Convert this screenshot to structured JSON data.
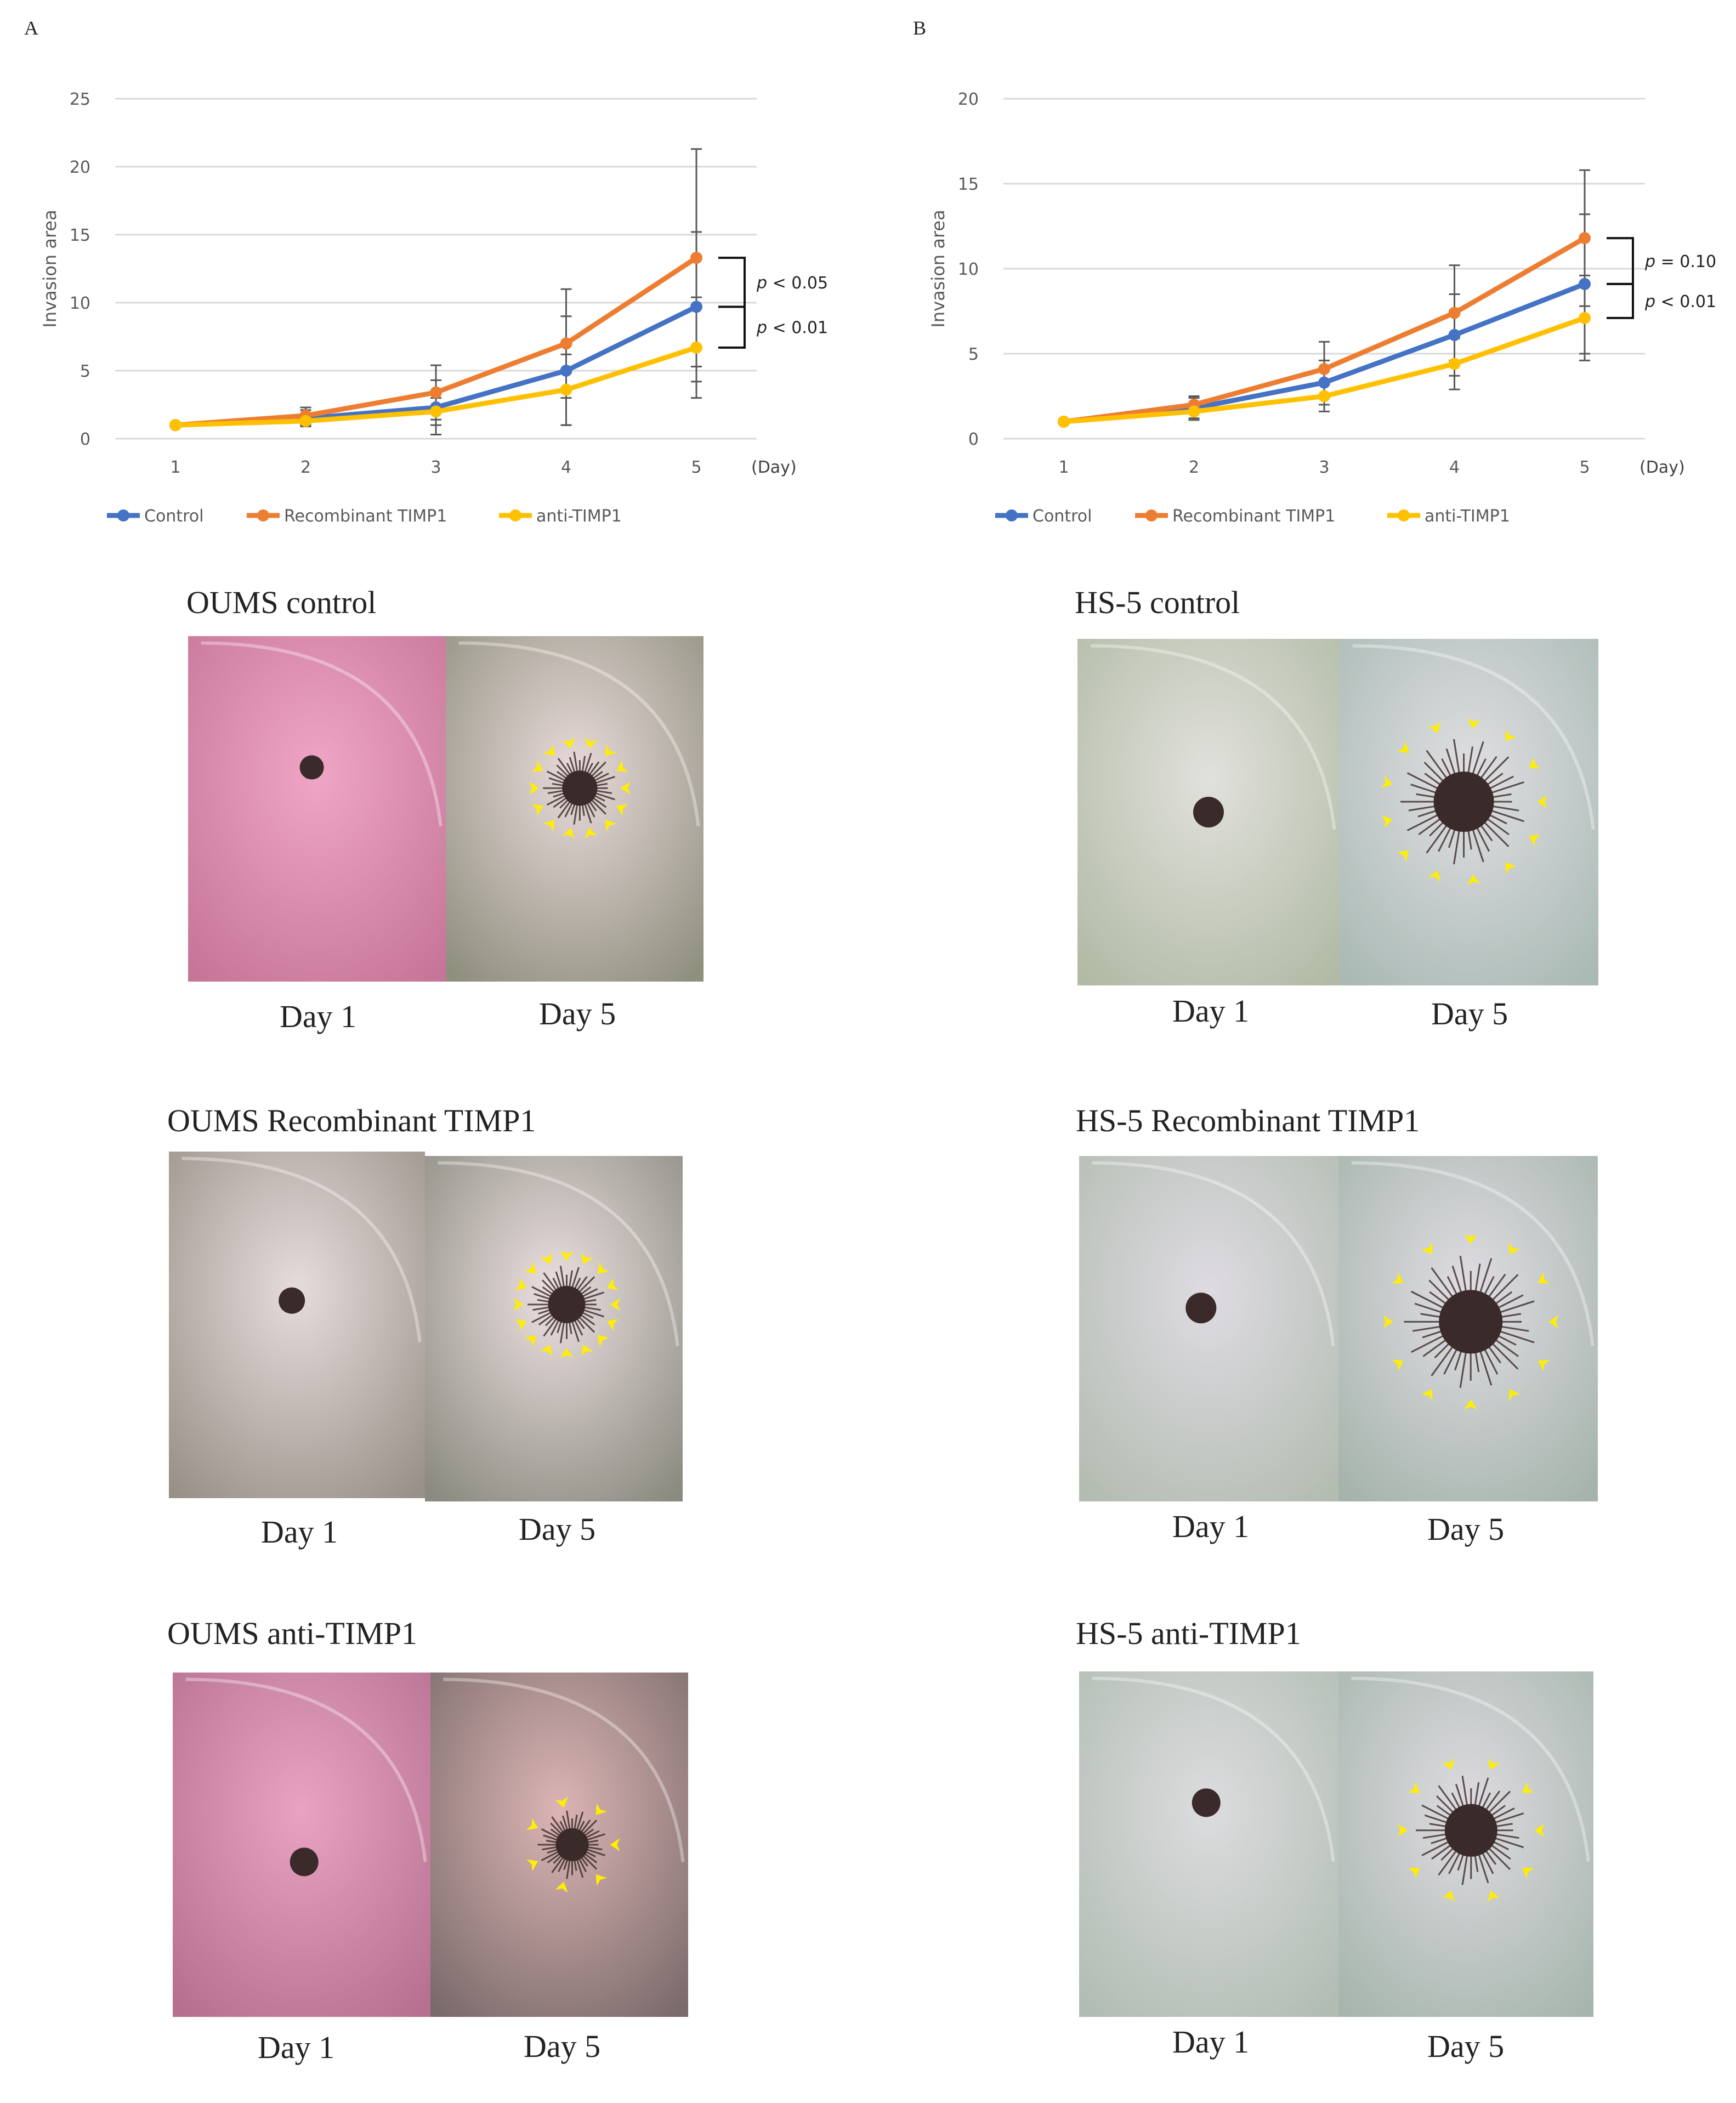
{
  "panels": {
    "a": {
      "letter": "A"
    },
    "b": {
      "letter": "B"
    }
  },
  "chart_data": [
    {
      "panel": "A",
      "type": "line",
      "ylabel": "Invasion area",
      "xlabel": "(Day)",
      "ylim": [
        0,
        25
      ],
      "yticks": [
        0,
        5,
        10,
        15,
        20,
        25
      ],
      "x": [
        1,
        2,
        3,
        4,
        5
      ],
      "series": [
        {
          "name": "Control",
          "color": "#4472C4",
          "values": [
            1.0,
            1.5,
            2.3,
            5.0,
            9.7
          ],
          "errors": [
            0.15,
            0.6,
            2.0,
            4.0,
            5.5
          ]
        },
        {
          "name": "Recombinant TIMP1",
          "color": "#ED7D31",
          "values": [
            1.0,
            1.7,
            3.4,
            7.0,
            13.3
          ],
          "errors": [
            0.15,
            0.6,
            2.0,
            4.0,
            8.0
          ]
        },
        {
          "name": "anti-TIMP1",
          "color": "#FFC000",
          "values": [
            1.0,
            1.3,
            2.0,
            3.6,
            6.7
          ],
          "errors": [
            0.15,
            0.3,
            1.0,
            2.6,
            3.7
          ]
        }
      ],
      "annotations": [
        {
          "prefix": "p",
          "text": " < 0.05"
        },
        {
          "prefix": "p",
          "text": " < 0.01"
        }
      ]
    },
    {
      "panel": "B",
      "type": "line",
      "ylabel": "Invasion area",
      "xlabel": "(Day)",
      "ylim": [
        0,
        20
      ],
      "yticks": [
        0,
        5,
        10,
        15,
        20
      ],
      "x": [
        1,
        2,
        3,
        4,
        5
      ],
      "series": [
        {
          "name": "Control",
          "color": "#4472C4",
          "values": [
            1.0,
            1.8,
            3.3,
            6.1,
            9.1
          ],
          "errors": [
            0.1,
            0.6,
            1.3,
            2.4,
            4.1
          ]
        },
        {
          "name": "Recombinant TIMP1",
          "color": "#ED7D31",
          "values": [
            1.0,
            2.0,
            4.1,
            7.4,
            11.8
          ],
          "errors": [
            0.1,
            0.5,
            1.6,
            2.8,
            4.0
          ]
        },
        {
          "name": "anti-TIMP1",
          "color": "#FFC000",
          "values": [
            1.0,
            1.6,
            2.5,
            4.4,
            7.1
          ],
          "errors": [
            0.1,
            0.5,
            0.9,
            1.5,
            2.5
          ]
        }
      ],
      "annotations": [
        {
          "prefix": "p",
          "text": " = 0.10"
        },
        {
          "prefix": "p",
          "text": " < 0.01"
        }
      ]
    }
  ],
  "photo_rows": {
    "oums_control": {
      "title": "OUMS control",
      "day1": "Day 1",
      "day5": "Day 5"
    },
    "oums_recombinant": {
      "title": "OUMS Recombinant TIMP1",
      "day1": "Day 1",
      "day5": "Day 5"
    },
    "oums_anti": {
      "title": "OUMS anti-TIMP1",
      "day1": "Day 1",
      "day5": "Day 5"
    },
    "hs5_control": {
      "title": "HS-5 control",
      "day1": "Day 1",
      "day5": "Day 5"
    },
    "hs5_recombinant": {
      "title": "HS-5 Recombinant TIMP1",
      "day1": "Day 1",
      "day5": "Day 5"
    },
    "hs5_anti": {
      "title": "HS-5 anti-TIMP1",
      "day1": "Day 1",
      "day5": "Day 5"
    }
  },
  "colors": {
    "oums_bg": "#dd8fb2",
    "hs5_bg": "#d6dccc",
    "arrow": "#ffee00",
    "spheroid": "#3a2a2a"
  }
}
